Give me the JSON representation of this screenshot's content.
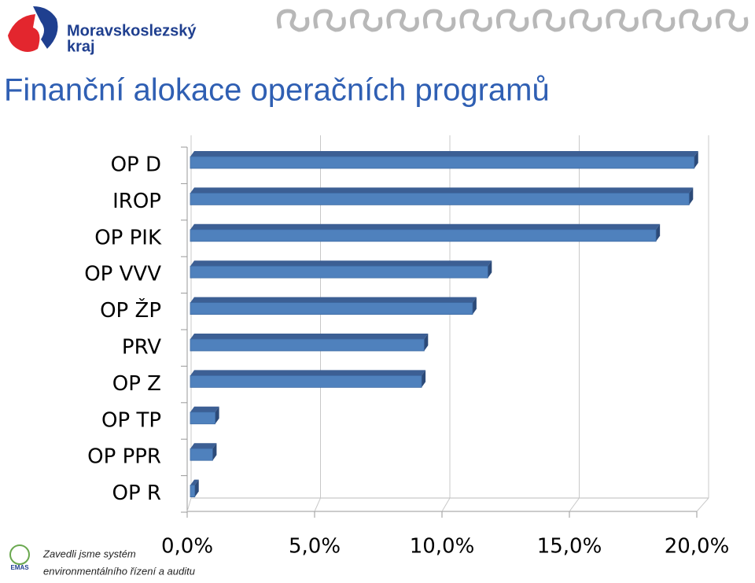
{
  "header": {
    "logo_text": "Moravskoslezský",
    "logo_subtext": "kraj"
  },
  "chart_data": {
    "type": "bar3d_horizontal",
    "title": "Finanční alokace operačních programů",
    "categories": [
      "OP D",
      "IROP",
      "OP PIK",
      "OP VVV",
      "OP ŽP",
      "PRV",
      "OP Z",
      "OP TP",
      "OP PPR",
      "OP R"
    ],
    "values": [
      19.9,
      19.7,
      18.4,
      11.8,
      11.2,
      9.3,
      9.2,
      1.1,
      1.0,
      0.3
    ],
    "color": "#4f81bd",
    "xlim": [
      0,
      20
    ],
    "xticks": [
      {
        "value": 0,
        "label": "0,0%"
      },
      {
        "value": 5,
        "label": "5,0%"
      },
      {
        "value": 10,
        "label": "10,0%"
      },
      {
        "value": 15,
        "label": "15,0%"
      },
      {
        "value": 20,
        "label": "20,0%"
      }
    ],
    "grid": true
  },
  "footer": {
    "line1": "Zavedli jsme systém",
    "line2": "environmentálního řízení a auditu",
    "badge": "EMAS"
  }
}
